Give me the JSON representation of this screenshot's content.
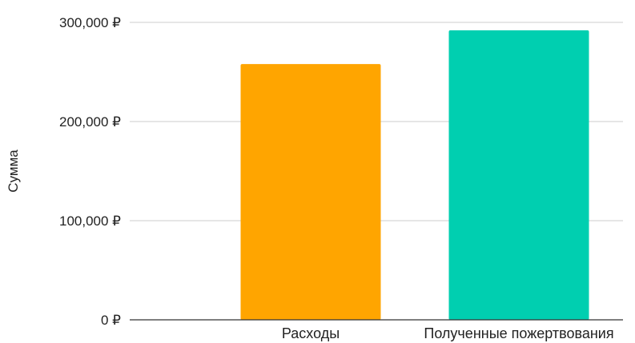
{
  "chart_data": {
    "type": "bar",
    "title": "",
    "xlabel": "",
    "ylabel": "Сумма",
    "categories": [
      "Расходы",
      "Полученные пожертвования"
    ],
    "values": [
      258000,
      292000
    ],
    "ylim": [
      0,
      300000
    ],
    "yticks": [
      0,
      100000,
      200000,
      300000
    ],
    "ytick_labels": [
      "0 ₽",
      "100,000 ₽",
      "200,000 ₽",
      "300,000 ₽"
    ],
    "bar_colors": [
      "#FFA500",
      "#00CFB0"
    ],
    "grid": true,
    "legend": "none"
  }
}
